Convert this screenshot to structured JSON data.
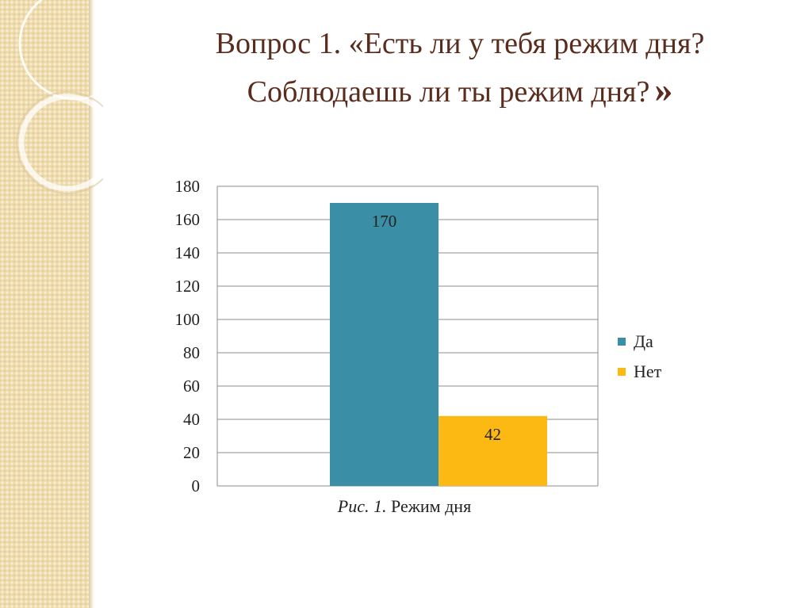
{
  "slide": {
    "title_line1": "Вопрос 1. «Есть ли у тебя режим дня?",
    "title_line2": "Соблюдаешь ли ты режим дня?",
    "title_close": "»"
  },
  "colors": {
    "title": "#5a2c1e",
    "side_band": "#efdcae",
    "series_da": "#3a8fa7",
    "series_net": "#fdb913"
  },
  "chart_data": {
    "type": "bar",
    "categories": [
      ""
    ],
    "series": [
      {
        "name": "Да",
        "values": [
          170
        ],
        "color": "#3a8fa7"
      },
      {
        "name": "Нет",
        "values": [
          42
        ],
        "color": "#fdb913"
      }
    ],
    "data_labels": [
      "170",
      "42"
    ],
    "ylim": [
      0,
      180
    ],
    "yticks": [
      0,
      20,
      40,
      60,
      80,
      100,
      120,
      140,
      160,
      180
    ],
    "grid": true,
    "legend": "right",
    "caption_fig": "Рис. 1.",
    "caption_text": " Режим дня"
  }
}
